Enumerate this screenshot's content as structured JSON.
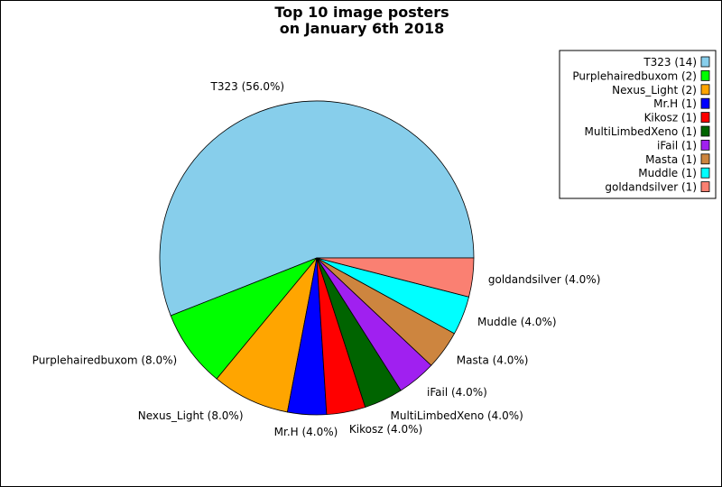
{
  "chart_data": {
    "type": "pie",
    "title_lines": [
      "Top 10 image posters",
      "on January 6th 2018"
    ],
    "slices": [
      {
        "name": "T323",
        "count": 14,
        "percent": 56.0,
        "color": "#87CEEB",
        "slice_label": "T323 (56.0%)",
        "legend_label": "T323 (14)"
      },
      {
        "name": "Purplehairedbuxom",
        "count": 2,
        "percent": 8.0,
        "color": "#00FF00",
        "slice_label": "Purplehairedbuxom (8.0%)",
        "legend_label": "Purplehairedbuxom (2)"
      },
      {
        "name": "Nexus_Light",
        "count": 2,
        "percent": 8.0,
        "color": "#FFA500",
        "slice_label": "Nexus_Light (8.0%)",
        "legend_label": "Nexus_Light (2)"
      },
      {
        "name": "Mr.H",
        "count": 1,
        "percent": 4.0,
        "color": "#0000FF",
        "slice_label": "Mr.H (4.0%)",
        "legend_label": "Mr.H (1)"
      },
      {
        "name": "Kikosz",
        "count": 1,
        "percent": 4.0,
        "color": "#FF0000",
        "slice_label": "Kikosz (4.0%)",
        "legend_label": "Kikosz (1)"
      },
      {
        "name": "MultiLimbedXeno",
        "count": 1,
        "percent": 4.0,
        "color": "#006400",
        "slice_label": "MultiLimbedXeno (4.0%)",
        "legend_label": "MultiLimbedXeno (1)"
      },
      {
        "name": "iFail",
        "count": 1,
        "percent": 4.0,
        "color": "#A020F0",
        "slice_label": "iFail (4.0%)",
        "legend_label": "iFail (1)"
      },
      {
        "name": "Masta",
        "count": 1,
        "percent": 4.0,
        "color": "#CD853F",
        "slice_label": "Masta (4.0%)",
        "legend_label": "Masta (1)"
      },
      {
        "name": "Muddle",
        "count": 1,
        "percent": 4.0,
        "color": "#00FFFF",
        "slice_label": "Muddle (4.0%)",
        "legend_label": "Muddle (1)"
      },
      {
        "name": "goldandsilver",
        "count": 1,
        "percent": 4.0,
        "color": "#FA8072",
        "slice_label": "goldandsilver (4.0%)",
        "legend_label": "goldandsilver (1)"
      }
    ],
    "start_angle": "0 degrees (3 o'clock)",
    "direction": "counterclockwise",
    "legend_position": "top-right"
  }
}
